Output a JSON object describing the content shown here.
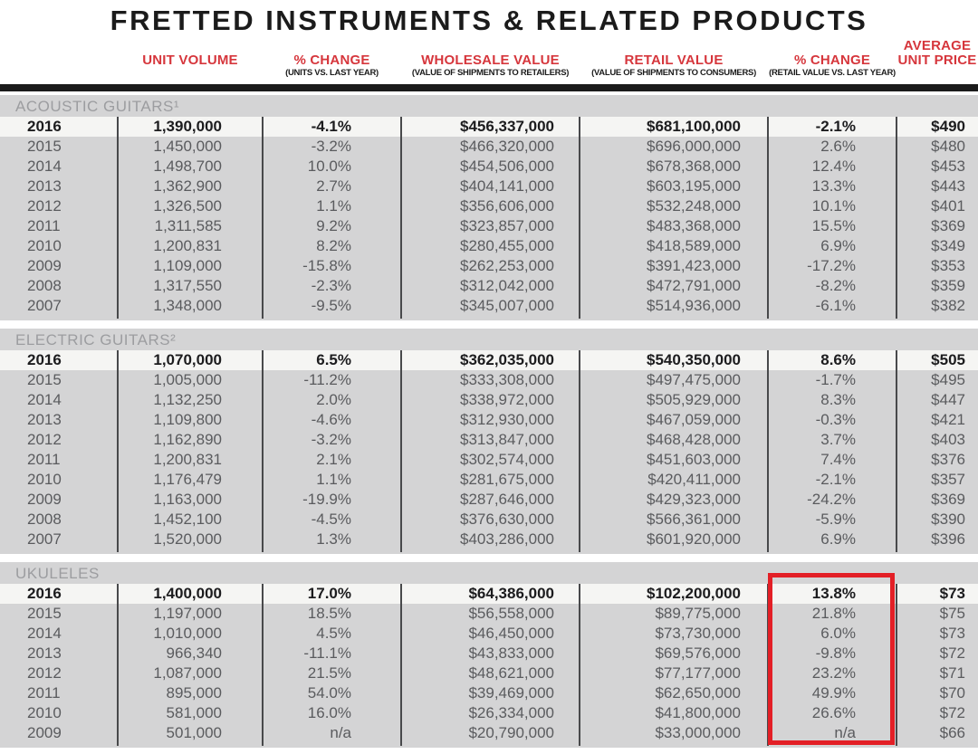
{
  "title": "FRETTED INSTRUMENTS & RELATED PRODUCTS",
  "columns": [
    {
      "label": "UNIT VOLUME",
      "sublabel": ""
    },
    {
      "label": "% CHANGE",
      "sublabel": "(UNITS VS. LAST YEAR)"
    },
    {
      "label": "WHOLESALE VALUE",
      "sublabel": "(VALUE OF SHIPMENTS TO RETAILERS)"
    },
    {
      "label": "RETAIL VALUE",
      "sublabel": "(VALUE OF SHIPMENTS TO CONSUMERS)"
    },
    {
      "label": "% CHANGE",
      "sublabel": "(RETAIL VALUE VS. LAST YEAR)"
    },
    {
      "label": "AVERAGE UNIT PRICE",
      "sublabel": ""
    }
  ],
  "sections": [
    {
      "id": "acoustic-guitars",
      "name": "ACOUSTIC GUITARS¹",
      "rows": [
        {
          "year": "2016",
          "unit_volume": "1,390,000",
          "pct_change_units": "-4.1%",
          "wholesale_value": "$456,337,000",
          "retail_value": "$681,100,000",
          "pct_change_retail": "-2.1%",
          "avg_unit_price": "$490",
          "highlight": true
        },
        {
          "year": "2015",
          "unit_volume": "1,450,000",
          "pct_change_units": "-3.2%",
          "wholesale_value": "$466,320,000",
          "retail_value": "$696,000,000",
          "pct_change_retail": "2.6%",
          "avg_unit_price": "$480",
          "highlight": false
        },
        {
          "year": "2014",
          "unit_volume": "1,498,700",
          "pct_change_units": "10.0%",
          "wholesale_value": "$454,506,000",
          "retail_value": "$678,368,000",
          "pct_change_retail": "12.4%",
          "avg_unit_price": "$453",
          "highlight": false
        },
        {
          "year": "2013",
          "unit_volume": "1,362,900",
          "pct_change_units": "2.7%",
          "wholesale_value": "$404,141,000",
          "retail_value": "$603,195,000",
          "pct_change_retail": "13.3%",
          "avg_unit_price": "$443",
          "highlight": false
        },
        {
          "year": "2012",
          "unit_volume": "1,326,500",
          "pct_change_units": "1.1%",
          "wholesale_value": "$356,606,000",
          "retail_value": "$532,248,000",
          "pct_change_retail": "10.1%",
          "avg_unit_price": "$401",
          "highlight": false
        },
        {
          "year": "2011",
          "unit_volume": "1,311,585",
          "pct_change_units": "9.2%",
          "wholesale_value": "$323,857,000",
          "retail_value": "$483,368,000",
          "pct_change_retail": "15.5%",
          "avg_unit_price": "$369",
          "highlight": false
        },
        {
          "year": "2010",
          "unit_volume": "1,200,831",
          "pct_change_units": "8.2%",
          "wholesale_value": "$280,455,000",
          "retail_value": "$418,589,000",
          "pct_change_retail": "6.9%",
          "avg_unit_price": "$349",
          "highlight": false
        },
        {
          "year": "2009",
          "unit_volume": "1,109,000",
          "pct_change_units": "-15.8%",
          "wholesale_value": "$262,253,000",
          "retail_value": "$391,423,000",
          "pct_change_retail": "-17.2%",
          "avg_unit_price": "$353",
          "highlight": false
        },
        {
          "year": "2008",
          "unit_volume": "1,317,550",
          "pct_change_units": "-2.3%",
          "wholesale_value": "$312,042,000",
          "retail_value": "$472,791,000",
          "pct_change_retail": "-8.2%",
          "avg_unit_price": "$359",
          "highlight": false
        },
        {
          "year": "2007",
          "unit_volume": "1,348,000",
          "pct_change_units": "-9.5%",
          "wholesale_value": "$345,007,000",
          "retail_value": "$514,936,000",
          "pct_change_retail": "-6.1%",
          "avg_unit_price": "$382",
          "highlight": false
        }
      ]
    },
    {
      "id": "electric-guitars",
      "name": "ELECTRIC GUITARS²",
      "rows": [
        {
          "year": "2016",
          "unit_volume": "1,070,000",
          "pct_change_units": "6.5%",
          "wholesale_value": "$362,035,000",
          "retail_value": "$540,350,000",
          "pct_change_retail": "8.6%",
          "avg_unit_price": "$505",
          "highlight": true
        },
        {
          "year": "2015",
          "unit_volume": "1,005,000",
          "pct_change_units": "-11.2%",
          "wholesale_value": "$333,308,000",
          "retail_value": "$497,475,000",
          "pct_change_retail": "-1.7%",
          "avg_unit_price": "$495",
          "highlight": false
        },
        {
          "year": "2014",
          "unit_volume": "1,132,250",
          "pct_change_units": "2.0%",
          "wholesale_value": "$338,972,000",
          "retail_value": "$505,929,000",
          "pct_change_retail": "8.3%",
          "avg_unit_price": "$447",
          "highlight": false
        },
        {
          "year": "2013",
          "unit_volume": "1,109,800",
          "pct_change_units": "-4.6%",
          "wholesale_value": "$312,930,000",
          "retail_value": "$467,059,000",
          "pct_change_retail": "-0.3%",
          "avg_unit_price": "$421",
          "highlight": false
        },
        {
          "year": "2012",
          "unit_volume": "1,162,890",
          "pct_change_units": "-3.2%",
          "wholesale_value": "$313,847,000",
          "retail_value": "$468,428,000",
          "pct_change_retail": "3.7%",
          "avg_unit_price": "$403",
          "highlight": false
        },
        {
          "year": "2011",
          "unit_volume": "1,200,831",
          "pct_change_units": "2.1%",
          "wholesale_value": "$302,574,000",
          "retail_value": "$451,603,000",
          "pct_change_retail": "7.4%",
          "avg_unit_price": "$376",
          "highlight": false
        },
        {
          "year": "2010",
          "unit_volume": "1,176,479",
          "pct_change_units": "1.1%",
          "wholesale_value": "$281,675,000",
          "retail_value": "$420,411,000",
          "pct_change_retail": "-2.1%",
          "avg_unit_price": "$357",
          "highlight": false
        },
        {
          "year": "2009",
          "unit_volume": "1,163,000",
          "pct_change_units": "-19.9%",
          "wholesale_value": "$287,646,000",
          "retail_value": "$429,323,000",
          "pct_change_retail": "-24.2%",
          "avg_unit_price": "$369",
          "highlight": false
        },
        {
          "year": "2008",
          "unit_volume": "1,452,100",
          "pct_change_units": "-4.5%",
          "wholesale_value": "$376,630,000",
          "retail_value": "$566,361,000",
          "pct_change_retail": "-5.9%",
          "avg_unit_price": "$390",
          "highlight": false
        },
        {
          "year": "2007",
          "unit_volume": "1,520,000",
          "pct_change_units": "1.3%",
          "wholesale_value": "$403,286,000",
          "retail_value": "$601,920,000",
          "pct_change_retail": "6.9%",
          "avg_unit_price": "$396",
          "highlight": false
        }
      ]
    },
    {
      "id": "ukuleles",
      "name": "UKULELES",
      "rows": [
        {
          "year": "2016",
          "unit_volume": "1,400,000",
          "pct_change_units": "17.0%",
          "wholesale_value": "$64,386,000",
          "retail_value": "$102,200,000",
          "pct_change_retail": "13.8%",
          "avg_unit_price": "$73",
          "highlight": true
        },
        {
          "year": "2015",
          "unit_volume": "1,197,000",
          "pct_change_units": "18.5%",
          "wholesale_value": "$56,558,000",
          "retail_value": "$89,775,000",
          "pct_change_retail": "21.8%",
          "avg_unit_price": "$75",
          "highlight": false
        },
        {
          "year": "2014",
          "unit_volume": "1,010,000",
          "pct_change_units": "4.5%",
          "wholesale_value": "$46,450,000",
          "retail_value": "$73,730,000",
          "pct_change_retail": "6.0%",
          "avg_unit_price": "$73",
          "highlight": false
        },
        {
          "year": "2013",
          "unit_volume": "966,340",
          "pct_change_units": "-11.1%",
          "wholesale_value": "$43,833,000",
          "retail_value": "$69,576,000",
          "pct_change_retail": "-9.8%",
          "avg_unit_price": "$72",
          "highlight": false
        },
        {
          "year": "2012",
          "unit_volume": "1,087,000",
          "pct_change_units": "21.5%",
          "wholesale_value": "$48,621,000",
          "retail_value": "$77,177,000",
          "pct_change_retail": "23.2%",
          "avg_unit_price": "$71",
          "highlight": false
        },
        {
          "year": "2011",
          "unit_volume": "895,000",
          "pct_change_units": "54.0%",
          "wholesale_value": "$39,469,000",
          "retail_value": "$62,650,000",
          "pct_change_retail": "49.9%",
          "avg_unit_price": "$70",
          "highlight": false
        },
        {
          "year": "2010",
          "unit_volume": "581,000",
          "pct_change_units": "16.0%",
          "wholesale_value": "$26,334,000",
          "retail_value": "$41,800,000",
          "pct_change_retail": "26.6%",
          "avg_unit_price": "$72",
          "highlight": false
        },
        {
          "year": "2009",
          "unit_volume": "501,000",
          "pct_change_units": "n/a",
          "wholesale_value": "$20,790,000",
          "retail_value": "$33,000,000",
          "pct_change_retail": "n/a",
          "avg_unit_price": "$66",
          "highlight": false
        }
      ]
    }
  ],
  "highlight_box": {
    "section_index": 2,
    "column": "pct_change_retail",
    "border_color": "#e31f26"
  },
  "colors": {
    "header_red": "#d6363c",
    "box_red": "#e31f26",
    "section_bg": "#d4d4d5",
    "highlight_row_bg": "#f5f5f3",
    "text_dark": "#1c1c1e",
    "text_gray": "#5a5b5e",
    "section_title_gray": "#9c9da0",
    "bar_black": "#1b1b1b"
  }
}
